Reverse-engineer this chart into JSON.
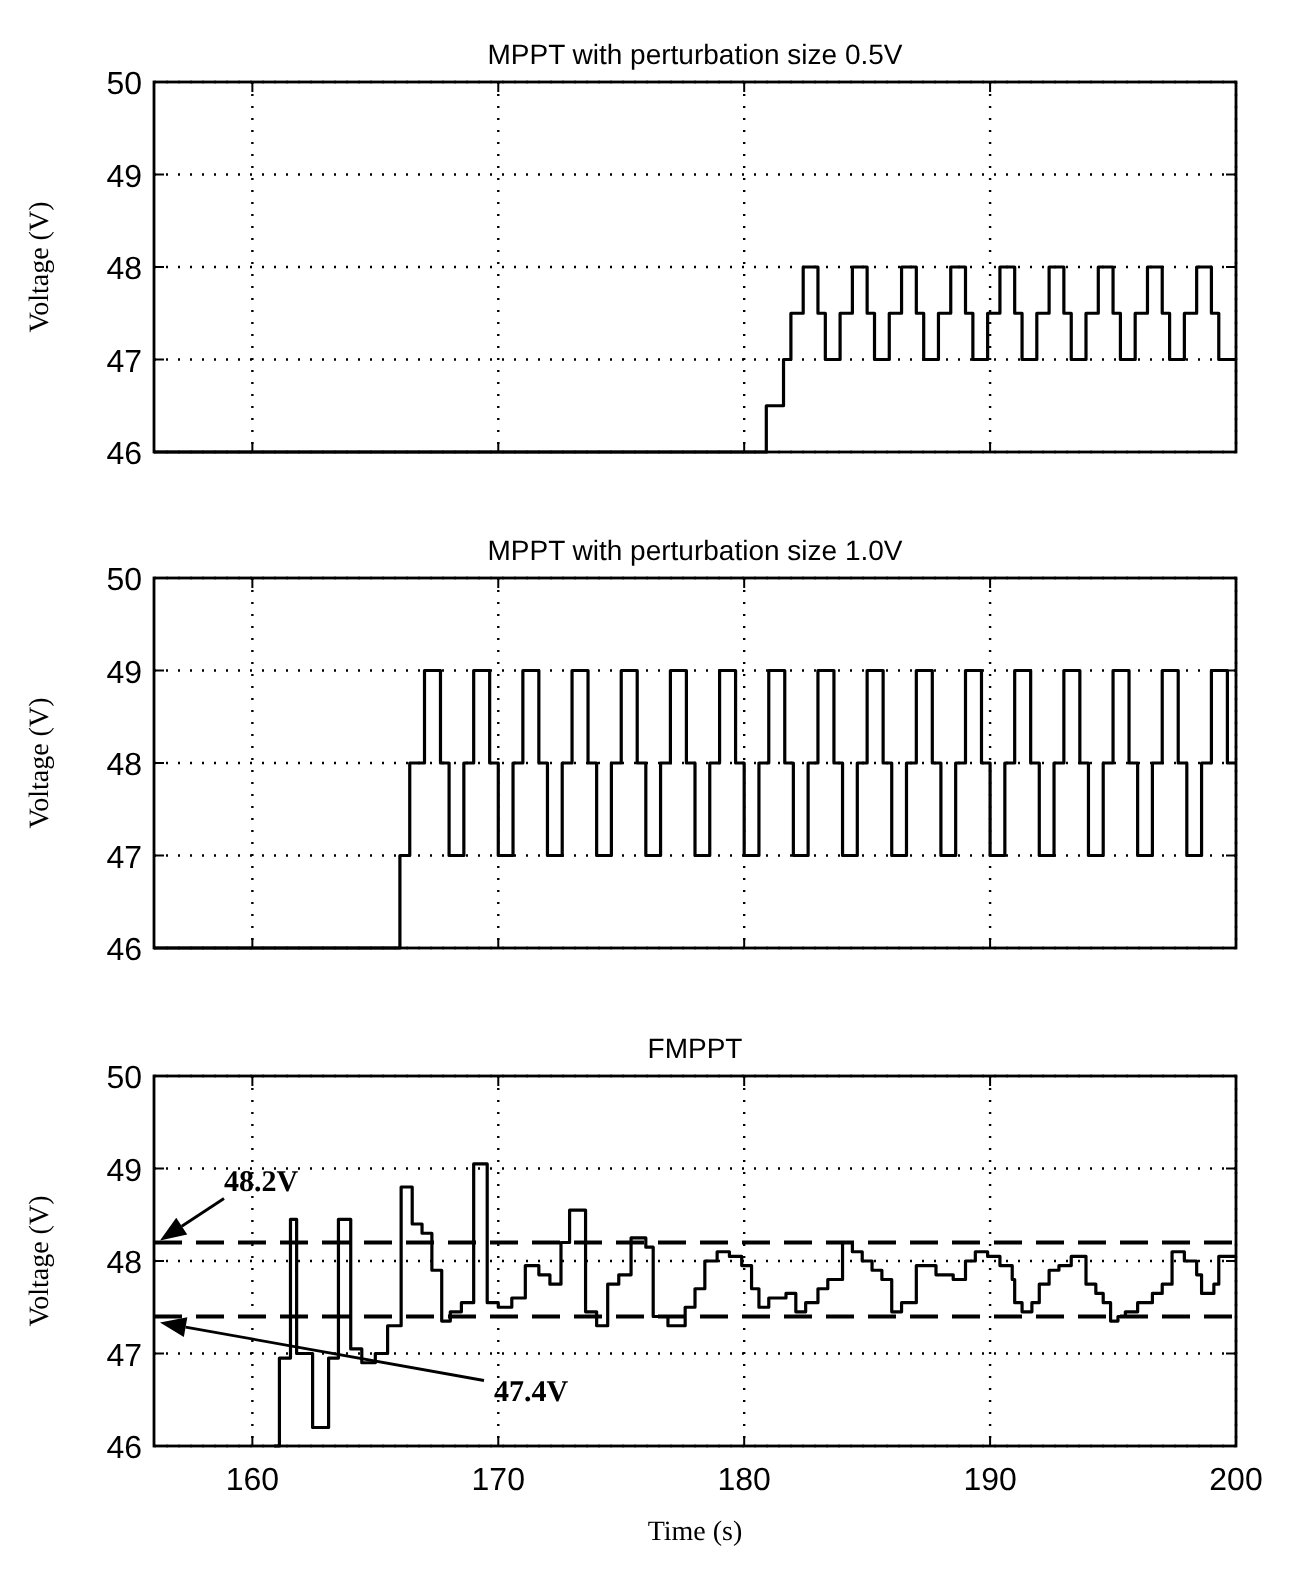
{
  "chart_data": [
    {
      "type": "step",
      "title": "MPPT with perturbation size 0.5V",
      "ylabel": "Voltage (V)",
      "xlim": [
        156,
        200
      ],
      "xticks": [
        160,
        170,
        180,
        190,
        200
      ],
      "ylim": [
        46,
        50
      ],
      "yticks": [
        46,
        47,
        48,
        49,
        50
      ],
      "grid": true,
      "tick_labels": "y",
      "line_style": "solid",
      "series": [
        {
          "color": "#000000",
          "x": [
            156,
            180.9,
            181.6,
            181.9,
            182.4,
            183.0,
            183.3,
            183.9,
            184.4,
            185.0,
            185.3,
            185.9,
            186.4,
            187.0,
            187.3,
            187.9,
            188.4,
            189.0,
            189.3,
            189.9,
            190.4,
            191.0,
            191.3,
            191.9,
            192.4,
            193.0,
            193.3,
            193.9,
            194.4,
            195.0,
            195.3,
            195.9,
            196.4,
            197.0,
            197.3,
            197.9,
            198.4,
            199.0,
            199.3,
            200
          ],
          "values": [
            46,
            46.5,
            47,
            47.5,
            48,
            47.5,
            47,
            47.5,
            48,
            47.5,
            47,
            47.5,
            48,
            47.5,
            47,
            47.5,
            48,
            47.5,
            47,
            47.5,
            48,
            47.5,
            47,
            47.5,
            48,
            47.5,
            47,
            47.5,
            48,
            47.5,
            47,
            47.5,
            48,
            47.5,
            47,
            47.5,
            48,
            47.5,
            47,
            47
          ]
        }
      ]
    },
    {
      "type": "step",
      "title": "MPPT with perturbation size 1.0V",
      "ylabel": "Voltage (V)",
      "xlim": [
        156,
        200
      ],
      "xticks": [
        160,
        170,
        180,
        190,
        200
      ],
      "ylim": [
        46,
        50
      ],
      "yticks": [
        46,
        47,
        48,
        49,
        50
      ],
      "grid": true,
      "tick_labels": "y",
      "line_style": "solid",
      "series": [
        {
          "color": "#000000",
          "x": [
            156,
            166.0,
            166.4,
            167,
            167.65,
            168,
            168.6,
            169,
            169.65,
            170,
            170.6,
            171,
            171.65,
            172,
            172.6,
            173,
            173.65,
            174,
            174.6,
            175,
            175.65,
            176,
            176.6,
            177,
            177.65,
            178,
            178.6,
            179,
            179.65,
            180,
            180.6,
            181,
            181.65,
            182,
            182.6,
            183,
            183.65,
            184,
            184.6,
            185,
            185.65,
            186,
            186.6,
            187,
            187.65,
            188,
            188.6,
            189,
            189.65,
            190,
            190.6,
            191,
            191.65,
            192,
            192.6,
            193,
            193.65,
            194,
            194.6,
            195,
            195.65,
            196,
            196.6,
            197,
            197.65,
            198,
            198.6,
            199,
            199.65,
            200
          ],
          "values": [
            46,
            47,
            48,
            49,
            48,
            47,
            48,
            49,
            48,
            47,
            48,
            49,
            48,
            47,
            48,
            49,
            48,
            47,
            48,
            49,
            48,
            47,
            48,
            49,
            48,
            47,
            48,
            49,
            48,
            47,
            48,
            49,
            48,
            47,
            48,
            49,
            48,
            47,
            48,
            49,
            48,
            47,
            48,
            49,
            48,
            47,
            48,
            49,
            48,
            47,
            48,
            49,
            48,
            47,
            48,
            49,
            48,
            47,
            48,
            49,
            48,
            47,
            48,
            49,
            48,
            47,
            48,
            49,
            48,
            48
          ]
        }
      ]
    },
    {
      "type": "step",
      "title": "FMPPT",
      "xlabel": "Time (s)",
      "ylabel": "Voltage (V)",
      "xlim": [
        156,
        200
      ],
      "xticks": [
        160,
        170,
        180,
        190,
        200
      ],
      "ylim": [
        46,
        50
      ],
      "yticks": [
        46,
        47,
        48,
        49,
        50
      ],
      "grid": true,
      "line_style": "solid",
      "ref_lines": [
        {
          "axis": "y",
          "value": 48.2,
          "label": "48.2V",
          "line_style": "dashed",
          "color": "#000000"
        },
        {
          "axis": "y",
          "value": 47.4,
          "label": "47.4V",
          "line_style": "dashed",
          "color": "#000000"
        }
      ],
      "series": [
        {
          "color": "#000000",
          "x": [
            160.9,
            161.1,
            161.55,
            161.8,
            162.45,
            163.1,
            163.5,
            164.0,
            164.45,
            165.0,
            165.5,
            166.05,
            166.5,
            166.9,
            167.3,
            167.7,
            168.05,
            168.5,
            169.0,
            169.55,
            170.0,
            170.55,
            171.1,
            171.65,
            172.1,
            172.55,
            172.9,
            173.55,
            174.0,
            174.45,
            174.9,
            175.4,
            176.0,
            176.3,
            176.9,
            177.6,
            178.0,
            178.4,
            178.9,
            179.4,
            179.9,
            180.3,
            180.6,
            181.0,
            181.7,
            182.1,
            182.5,
            183.0,
            183.4,
            184.0,
            184.4,
            184.8,
            185.2,
            185.6,
            186.0,
            186.4,
            187.0,
            187.8,
            188.5,
            189.0,
            189.4,
            189.9,
            190.4,
            190.9,
            191.0,
            191.3,
            191.7,
            192.0,
            192.4,
            192.8,
            193.3,
            193.9,
            194.3,
            194.6,
            194.9,
            195.2,
            195.5,
            196.0,
            196.6,
            197.0,
            197.4,
            197.9,
            198.4,
            198.6,
            199.1,
            199.3,
            200
          ],
          "values": [
            46,
            46.95,
            48.45,
            47.0,
            46.2,
            46.95,
            48.45,
            47.05,
            46.9,
            47.0,
            47.3,
            48.8,
            48.4,
            48.3,
            47.9,
            47.35,
            47.45,
            47.55,
            49.05,
            47.55,
            47.5,
            47.6,
            47.95,
            47.85,
            47.75,
            48.2,
            48.55,
            47.45,
            47.3,
            47.75,
            47.85,
            48.25,
            48.15,
            47.4,
            47.3,
            47.5,
            47.7,
            48.0,
            48.1,
            48.05,
            47.95,
            47.7,
            47.5,
            47.6,
            47.65,
            47.45,
            47.55,
            47.7,
            47.8,
            48.2,
            48.1,
            48.0,
            47.9,
            47.8,
            47.45,
            47.55,
            47.95,
            47.85,
            47.8,
            48.0,
            48.1,
            48.05,
            47.95,
            47.8,
            47.55,
            47.45,
            47.55,
            47.75,
            47.9,
            47.95,
            48.05,
            47.75,
            47.65,
            47.55,
            47.35,
            47.4,
            47.45,
            47.55,
            47.65,
            47.75,
            48.1,
            48.0,
            47.85,
            47.65,
            47.75,
            48.05,
            48.05
          ]
        }
      ]
    }
  ]
}
